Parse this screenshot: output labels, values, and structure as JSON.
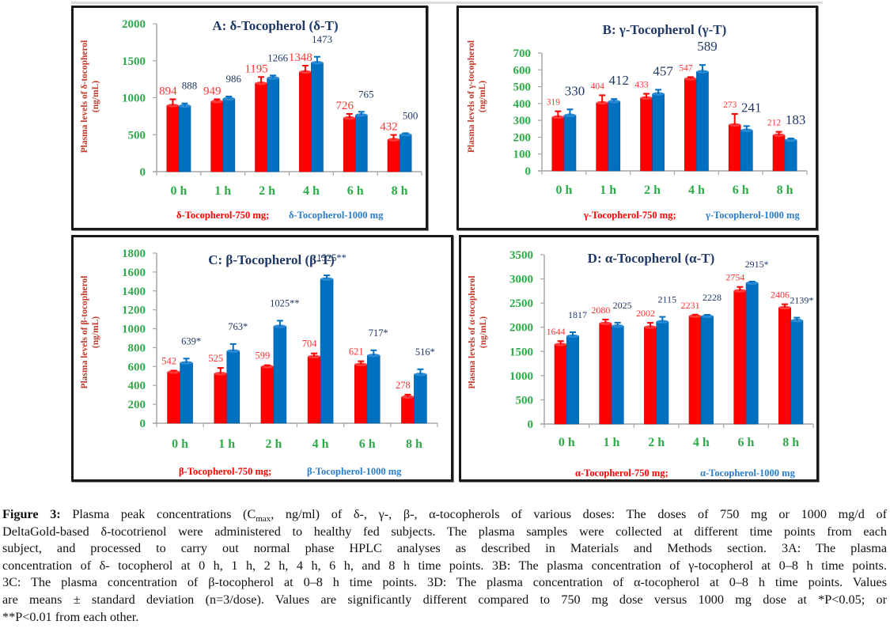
{
  "colors": {
    "series_750": "#ff0000",
    "series_1000": "#0070c0",
    "label_750": "#ff3333",
    "label_1000": "#1f3864",
    "tick": "#2eaa4a",
    "ylabel": "#c0392b",
    "title": "#1f3864"
  },
  "chart_data": [
    {
      "type": "bar",
      "panel": "A",
      "title": "A: δ-Tocopherol (δ-T)",
      "ylabel": [
        "Plasma levels of δ-tocopherol",
        "(ng/mL)"
      ],
      "xlabel": "",
      "categories": [
        "0 h",
        "1 h",
        "2 h",
        "4 h",
        "6 h",
        "8 h"
      ],
      "ylim": [
        0,
        2000
      ],
      "yticks": [
        0,
        500,
        1000,
        1500,
        2000
      ],
      "grid": false,
      "legend_position": "bottom",
      "series": [
        {
          "name": "δ-Tocopherol-750 mg;",
          "values": [
            894,
            949,
            1195,
            1348,
            726,
            432
          ],
          "errors": [
            85,
            30,
            85,
            85,
            55,
            65
          ],
          "labels": [
            "894",
            "949",
            "1195",
            "1348",
            "726",
            "432"
          ]
        },
        {
          "name": "δ-Tocopherol-1000 mg",
          "values": [
            888,
            986,
            1266,
            1473,
            765,
            500
          ],
          "errors": [
            35,
            30,
            35,
            80,
            45,
            20
          ],
          "labels": [
            "888",
            "986",
            "1266",
            "1473",
            "765",
            "500"
          ]
        }
      ]
    },
    {
      "type": "bar",
      "panel": "B",
      "title": "B: γ-Tocopherol (γ-T)",
      "ylabel": [
        "Plasma levels of γ-tocopherol",
        "(ng/mL)"
      ],
      "xlabel": "",
      "categories": [
        "0 h",
        "1 h",
        "2 h",
        "4 h",
        "6 h",
        "8 h"
      ],
      "ylim": [
        0,
        700
      ],
      "yticks": [
        0,
        100,
        200,
        300,
        400,
        500,
        600,
        700
      ],
      "grid": false,
      "legend_position": "bottom",
      "series": [
        {
          "name": "γ-Tocopherol-750 mg;",
          "values": [
            319,
            404,
            433,
            547,
            273,
            212
          ],
          "errors": [
            35,
            45,
            25,
            10,
            65,
            20
          ],
          "labels": [
            "319",
            "404",
            "433",
            "547",
            "273",
            "212"
          ]
        },
        {
          "name": "γ-Tocopherol-1000 mg",
          "values": [
            330,
            412,
            457,
            589,
            241,
            183
          ],
          "errors": [
            35,
            15,
            25,
            40,
            25,
            10
          ],
          "labels": [
            "330",
            "412",
            "457",
            "589",
            "241",
            "183"
          ]
        }
      ]
    },
    {
      "type": "bar",
      "panel": "C",
      "title": "C: β-Tocopherol (β-T)",
      "ylabel": [
        "Plasma levels of β-tocopherol",
        "(ng/mL)"
      ],
      "xlabel": "",
      "categories": [
        "0 h",
        "1 h",
        "2 h",
        "4 h",
        "6 h",
        "8 h"
      ],
      "ylim": [
        0,
        1800
      ],
      "yticks": [
        0,
        200,
        400,
        600,
        800,
        1000,
        1200,
        1400,
        1600,
        1800
      ],
      "grid": false,
      "legend_position": "bottom",
      "series": [
        {
          "name": "β-Tocopherol-750 mg;",
          "values": [
            542,
            525,
            599,
            704,
            621,
            278
          ],
          "errors": [
            15,
            60,
            15,
            35,
            35,
            25
          ],
          "labels": [
            "542",
            "525",
            "599",
            "704",
            "621",
            "278"
          ]
        },
        {
          "name": "β-Tocopherol-1000 mg",
          "values": [
            639,
            763,
            1025,
            1525,
            717,
            516
          ],
          "errors": [
            45,
            75,
            60,
            40,
            55,
            55
          ],
          "labels": [
            "639*",
            "763*",
            "1025**",
            "1525**",
            "717*",
            "516*"
          ]
        }
      ]
    },
    {
      "type": "bar",
      "panel": "D",
      "title": "D: α-Tocopherol (α-T)",
      "ylabel": [
        "Plasma levels of α-tocopherol",
        "(ng/mL)"
      ],
      "xlabel": "",
      "categories": [
        "0 h",
        "1 h",
        "2 h",
        "4 h",
        "6 h",
        "8 h"
      ],
      "ylim": [
        0,
        3500
      ],
      "yticks": [
        0,
        500,
        1000,
        1500,
        2000,
        2500,
        3000,
        3500
      ],
      "grid": false,
      "legend_position": "bottom",
      "series": [
        {
          "name": "α-Tocopherol-750 mg;",
          "values": [
            1644,
            2080,
            2002,
            2231,
            2754,
            2406
          ],
          "errors": [
            70,
            80,
            90,
            30,
            80,
            70
          ],
          "labels": [
            "1644",
            "2080",
            "2002",
            "2231",
            "2754",
            "2406"
          ]
        },
        {
          "name": "α-Tocopherol-1000 mg",
          "values": [
            1817,
            2025,
            2115,
            2228,
            2915,
            2139
          ],
          "errors": [
            80,
            70,
            100,
            30,
            30,
            60
          ],
          "labels": [
            "1817",
            "2025",
            "2115",
            "2228",
            "2915*",
            "2139*"
          ]
        }
      ]
    }
  ],
  "caption": {
    "label": "Figure 3:",
    "lines": [
      [
        "Plasma peak concentrations (C",
        "max",
        ", ng/ml) of δ-, γ-, β-, α-tocopherols of various doses: The doses of 750 mg or 1000 mg/d of"
      ],
      "DeltaGold-based δ-tocotrienol were administered to healthy fed subjects. The plasma samples were collected at different time points from each",
      "subject, and processed to carry out normal phase HPLC analyses as described in Materials and Methods section. 3A: The plasma",
      "concentration of δ- tocopherol at 0 h, 1 h, 2 h, 4 h, 6 h, and 8 h time points. 3B: The plasma concentration of γ-tocopherol at 0–8 h time points.",
      "3C: The plasma concentration of β-tocopherol at 0–8 h time points. 3D: The plasma concentration of α-tocopherol at 0–8 h time points. Values",
      "are means ± standard deviation (n=3/dose). Values are significantly different compared to 750 mg dose versus 1000 mg dose at *P<0.05; or",
      "**P<0.01 from each other."
    ]
  }
}
